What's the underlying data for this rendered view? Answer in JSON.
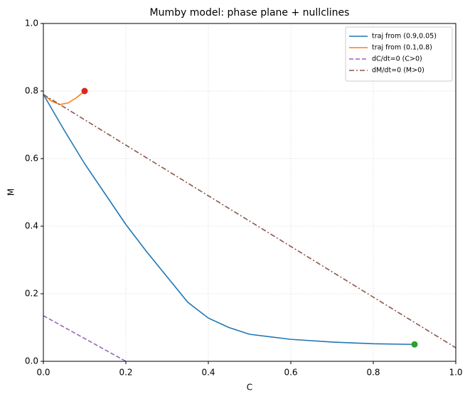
{
  "chart_data": {
    "type": "line",
    "title": "Mumby model: phase plane + nullclines",
    "xlabel": "C",
    "ylabel": "M",
    "xlim": [
      0,
      1
    ],
    "ylim": [
      0,
      1
    ],
    "xticks": [
      {
        "value": 0,
        "label": "0.0"
      },
      0.2,
      0.4,
      0.6,
      0.8,
      {
        "value": 1,
        "label": "1.0"
      }
    ],
    "yticks": [
      {
        "value": 0,
        "label": "0.0"
      },
      0.2,
      0.4,
      0.6,
      0.8,
      {
        "value": 1,
        "label": "1.0"
      }
    ],
    "grid": true,
    "legend": "upper right",
    "series": [
      {
        "name": "traj from (0.9,0.05)",
        "color": "#1f77b4",
        "linestyle": "solid",
        "x": [
          0.9,
          0.8,
          0.7,
          0.6,
          0.5,
          0.45,
          0.4,
          0.35,
          0.3,
          0.25,
          0.2,
          0.15,
          0.1,
          0.05,
          0
        ],
        "values": [
          0.05,
          0.052,
          0.057,
          0.065,
          0.08,
          0.1,
          0.128,
          0.175,
          0.25,
          0.325,
          0.405,
          0.495,
          0.585,
          0.685,
          0.79
        ]
      },
      {
        "name": "traj from (0.1,0.8)",
        "color": "#ff7f0e",
        "linestyle": "solid",
        "x": [
          0.1,
          0.08,
          0.06,
          0.04,
          0.02,
          0
        ],
        "values": [
          0.8,
          0.78,
          0.765,
          0.76,
          0.77,
          0.79
        ]
      },
      {
        "name": "dC/dt=0 (C>0)",
        "color": "#9467bd",
        "linestyle": "dashed",
        "x": [
          0,
          0.2
        ],
        "values": [
          0.135,
          0
        ]
      },
      {
        "name": "dM/dt=0 (M>0)",
        "color": "#8c564b",
        "linestyle": "dashdot",
        "x": [
          0,
          1
        ],
        "values": [
          0.79,
          0.04
        ]
      }
    ],
    "markers": [
      {
        "x": 0.1,
        "y": 0.8,
        "color": "#d62728"
      },
      {
        "x": 0.9,
        "y": 0.05,
        "color": "#2ca02c"
      }
    ]
  }
}
